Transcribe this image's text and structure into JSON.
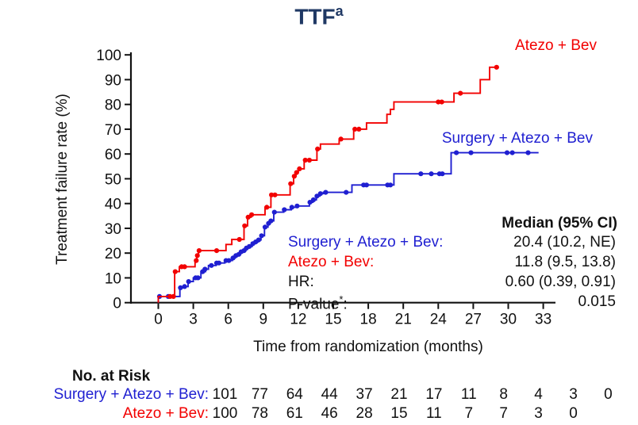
{
  "title": {
    "text": "TTF",
    "superscript": "a"
  },
  "colors": {
    "red": "#f20000",
    "blue": "#1f1fd1",
    "title_navy": "#1f3864",
    "axis": "#111111"
  },
  "legend": {
    "red_label": "Atezo + Bev",
    "blue_label": "Surgery + Atezo + Bev"
  },
  "stats": {
    "header": "Median (95% CI)",
    "rows": [
      {
        "label": "Surgery + Atezo + Bev",
        "sup": "",
        "suffix": ":",
        "value": "20.4 (10.2, NE)",
        "color": "blue"
      },
      {
        "label": "Atezo + Bev",
        "sup": "",
        "suffix": ":",
        "value": "11.8 (9.5, 13.8)",
        "color": "red"
      },
      {
        "label": "HR",
        "sup": "",
        "suffix": ":",
        "value": "0.60 (0.39, 0.91)",
        "color": "black"
      },
      {
        "label": "P-value",
        "sup": "*",
        "suffix": ":",
        "value": "0.015",
        "color": "black"
      }
    ]
  },
  "risk_table": {
    "title": "No. at Risk",
    "rows": [
      {
        "label": "Surgery + Atezo + Bev:",
        "color": "blue",
        "values": [
          101,
          77,
          64,
          44,
          37,
          21,
          17,
          11,
          8,
          4,
          3,
          0
        ]
      },
      {
        "label": "Atezo + Bev:",
        "color": "red",
        "values": [
          100,
          78,
          61,
          46,
          28,
          15,
          11,
          7,
          7,
          3,
          0
        ]
      }
    ]
  },
  "chart_data": {
    "type": "line",
    "subtype": "kaplan-meier-step",
    "title": "TTF(a)",
    "xlabel": "Time from randomization (months)",
    "ylabel": "Treatment failure rate (%)",
    "xlim": [
      0,
      33
    ],
    "ylim": [
      0,
      100
    ],
    "xticks": [
      0,
      3,
      6,
      9,
      12,
      15,
      18,
      21,
      24,
      27,
      30,
      33
    ],
    "yticks": [
      0,
      10,
      20,
      30,
      40,
      50,
      60,
      70,
      80,
      90,
      100
    ],
    "grid": false,
    "legend_position": "inline-labels",
    "series": [
      {
        "name": "Surgery + Atezo + Bev",
        "color": "#1f1fd1",
        "median": "20.4 (10.2, NE)",
        "end_month": 32.6,
        "steps": [
          [
            0,
            2.5
          ],
          [
            1.85,
            6
          ],
          [
            2.2,
            6.5
          ],
          [
            2.55,
            8.5
          ],
          [
            3.0,
            10
          ],
          [
            3.65,
            12.5
          ],
          [
            4.05,
            13.5
          ],
          [
            4.3,
            15
          ],
          [
            4.95,
            16
          ],
          [
            5.7,
            17
          ],
          [
            6.35,
            18
          ],
          [
            6.6,
            19
          ],
          [
            6.85,
            19.5
          ],
          [
            7.05,
            20.5
          ],
          [
            7.3,
            21
          ],
          [
            7.5,
            22
          ],
          [
            7.75,
            22.7
          ],
          [
            8.05,
            23.8
          ],
          [
            8.3,
            24.5
          ],
          [
            8.55,
            25.3
          ],
          [
            8.8,
            27
          ],
          [
            9.1,
            30.5
          ],
          [
            9.4,
            32
          ],
          [
            9.6,
            33
          ],
          [
            9.9,
            36.5
          ],
          [
            10.75,
            37.5
          ],
          [
            11.4,
            38.5
          ],
          [
            11.85,
            39
          ],
          [
            12.95,
            40.5
          ],
          [
            13.25,
            41.5
          ],
          [
            13.55,
            43
          ],
          [
            13.85,
            44
          ],
          [
            14.15,
            44.5
          ],
          [
            16.6,
            47.5
          ],
          [
            20.2,
            52
          ],
          [
            25.1,
            60.5
          ]
        ],
        "censor_marks": [
          [
            0.1,
            2.5
          ],
          [
            0.85,
            2.5
          ],
          [
            1.9,
            6
          ],
          [
            2.25,
            6.5
          ],
          [
            2.6,
            8.5
          ],
          [
            3.2,
            10
          ],
          [
            3.4,
            10
          ],
          [
            3.8,
            12.5
          ],
          [
            4.0,
            13.5
          ],
          [
            4.55,
            15
          ],
          [
            5.0,
            16
          ],
          [
            5.2,
            16
          ],
          [
            5.8,
            17
          ],
          [
            6.05,
            17
          ],
          [
            6.4,
            18
          ],
          [
            6.65,
            19
          ],
          [
            6.9,
            19.5
          ],
          [
            7.1,
            20.5
          ],
          [
            7.35,
            21
          ],
          [
            7.55,
            22
          ],
          [
            7.8,
            22.7
          ],
          [
            8.1,
            23.8
          ],
          [
            8.35,
            24.5
          ],
          [
            8.6,
            25.3
          ],
          [
            8.85,
            27
          ],
          [
            9.15,
            30.5
          ],
          [
            9.45,
            32
          ],
          [
            9.65,
            33
          ],
          [
            9.95,
            36.5
          ],
          [
            10.8,
            37.5
          ],
          [
            11.45,
            38.5
          ],
          [
            11.9,
            39
          ],
          [
            13.0,
            40.5
          ],
          [
            13.3,
            41.5
          ],
          [
            13.6,
            43
          ],
          [
            13.9,
            44
          ],
          [
            14.35,
            44.5
          ],
          [
            16.1,
            44.5
          ],
          [
            17.6,
            47.5
          ],
          [
            17.85,
            47.5
          ],
          [
            19.65,
            47.5
          ],
          [
            19.9,
            47.5
          ],
          [
            22.5,
            52
          ],
          [
            23.4,
            52
          ],
          [
            24.1,
            52
          ],
          [
            24.35,
            52
          ],
          [
            25.55,
            60.5
          ],
          [
            26.8,
            60.5
          ],
          [
            29.9,
            60.5
          ],
          [
            30.35,
            60.5
          ],
          [
            31.7,
            60.5
          ]
        ]
      },
      {
        "name": "Atezo + Bev",
        "color": "#f20000",
        "median": "11.8 (9.5, 13.8)",
        "end_month": 29.2,
        "steps": [
          [
            0,
            2.5
          ],
          [
            1.4,
            12.5
          ],
          [
            1.8,
            14.5
          ],
          [
            3.15,
            17
          ],
          [
            3.3,
            19
          ],
          [
            3.45,
            21
          ],
          [
            5.8,
            23.5
          ],
          [
            6.3,
            25.5
          ],
          [
            7.35,
            31
          ],
          [
            7.65,
            34.5
          ],
          [
            7.95,
            35.5
          ],
          [
            9.15,
            38.5
          ],
          [
            9.65,
            43.5
          ],
          [
            11.3,
            48
          ],
          [
            11.6,
            51
          ],
          [
            11.8,
            52.5
          ],
          [
            12.0,
            54
          ],
          [
            12.5,
            57.5
          ],
          [
            13.6,
            62
          ],
          [
            13.9,
            64
          ],
          [
            15.5,
            66
          ],
          [
            16.75,
            70
          ],
          [
            17.85,
            72.5
          ],
          [
            19.6,
            76
          ],
          [
            19.9,
            78
          ],
          [
            20.2,
            81
          ],
          [
            25.35,
            84.5
          ],
          [
            27.6,
            90
          ],
          [
            28.4,
            95
          ]
        ],
        "censor_marks": [
          [
            1.0,
            2.5
          ],
          [
            1.3,
            2.5
          ],
          [
            1.45,
            12.5
          ],
          [
            2.0,
            14.5
          ],
          [
            2.25,
            14.5
          ],
          [
            3.25,
            17
          ],
          [
            3.35,
            19
          ],
          [
            3.5,
            21
          ],
          [
            5.0,
            21
          ],
          [
            6.95,
            25.5
          ],
          [
            7.4,
            31
          ],
          [
            7.7,
            34.5
          ],
          [
            8.0,
            35.5
          ],
          [
            9.3,
            38.5
          ],
          [
            9.7,
            43.5
          ],
          [
            10.0,
            43.5
          ],
          [
            11.35,
            48
          ],
          [
            11.65,
            51
          ],
          [
            11.85,
            52.5
          ],
          [
            12.1,
            54
          ],
          [
            12.6,
            57.5
          ],
          [
            12.95,
            57.5
          ],
          [
            13.65,
            62
          ],
          [
            15.65,
            66
          ],
          [
            16.85,
            70
          ],
          [
            17.2,
            70
          ],
          [
            24.0,
            81
          ],
          [
            24.3,
            81
          ],
          [
            25.9,
            84.5
          ],
          [
            29.0,
            95
          ]
        ]
      }
    ],
    "annotations": {
      "hr": "0.60 (0.39, 0.91)",
      "p_value": "0.015"
    }
  }
}
